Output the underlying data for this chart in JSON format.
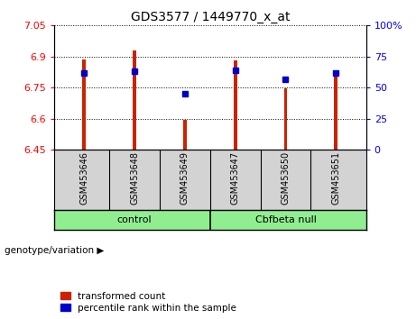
{
  "title": "GDS3577 / 1449770_x_at",
  "samples": [
    "GSM453646",
    "GSM453648",
    "GSM453649",
    "GSM453647",
    "GSM453650",
    "GSM453651"
  ],
  "groups": [
    "control",
    "control",
    "control",
    "Cbfbeta null",
    "Cbfbeta null",
    "Cbfbeta null"
  ],
  "group_labels": [
    "control",
    "Cbfbeta null"
  ],
  "bar_values": [
    6.887,
    6.928,
    6.592,
    6.88,
    6.748,
    6.82
  ],
  "percentile_values": [
    62,
    63,
    45,
    64,
    57,
    62
  ],
  "ylim_left": [
    6.45,
    7.05
  ],
  "ylim_right": [
    0,
    100
  ],
  "yticks_left": [
    6.45,
    6.6,
    6.75,
    6.9,
    7.05
  ],
  "yticks_right": [
    0,
    25,
    50,
    75,
    100
  ],
  "ytick_labels_left": [
    "6.45",
    "6.6",
    "6.75",
    "6.9",
    "7.05"
  ],
  "ytick_labels_right": [
    "0",
    "25",
    "50",
    "75",
    "100%"
  ],
  "bar_color": "#cc2200",
  "dot_color": "#0000cc",
  "bar_bottom": 6.45,
  "bar_width": 0.07,
  "legend_red": "transformed count",
  "legend_blue": "percentile rank within the sample",
  "genotype_label": "genotype/variation"
}
